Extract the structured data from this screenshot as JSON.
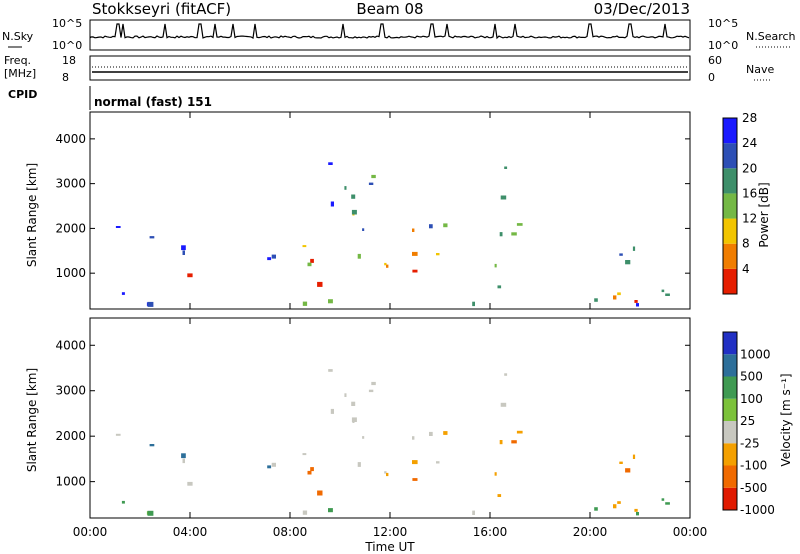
{
  "header": {
    "station": "Stokkseyri (fitACF)",
    "beam": "Beam 08",
    "date": "03/Dec/2013"
  },
  "top_panels": {
    "nsky_label": "N.Sky",
    "nsky_ticks": [
      "10^5",
      "10^0"
    ],
    "nsearch_label": "N.Search",
    "nsearch_ticks": [
      "10^5",
      "10^0"
    ],
    "freq_label": "Freq.",
    "freq_unit": "[MHz]",
    "freq_ticks": [
      "18",
      "8"
    ],
    "nave_label": "Nave",
    "nave_ticks": [
      "60",
      "0"
    ],
    "cpid_label": "CPID",
    "cpid_value": "normal (fast) 151"
  },
  "chart_data": [
    {
      "type": "heatmap",
      "name": "power",
      "ylabel": "Slant Range [km]",
      "yticks": [
        "1000",
        "2000",
        "3000",
        "4000"
      ],
      "ylim": [
        200,
        4600
      ],
      "xlim": [
        0,
        24
      ],
      "colorbar": {
        "label": "Power [dB]",
        "ticks": [
          "4",
          "8",
          "12",
          "16",
          "20",
          "24",
          "28"
        ],
        "colors": [
          "#1a1aff",
          "#2d4fb5",
          "#3e8f6a",
          "#74b845",
          "#f2c500",
          "#f07d00",
          "#e61e00"
        ]
      }
    },
    {
      "type": "heatmap",
      "name": "velocity",
      "ylabel": "Slant Range [km]",
      "yticks": [
        "1000",
        "2000",
        "3000",
        "4000"
      ],
      "ylim": [
        200,
        4600
      ],
      "xlim": [
        0,
        24
      ],
      "xticks": [
        "00:00",
        "04:00",
        "08:00",
        "12:00",
        "16:00",
        "20:00",
        "00:00"
      ],
      "xlabel": "Time UT",
      "colorbar": {
        "label": "Velocity [m s⁻¹]",
        "ticks": [
          "1000",
          "500",
          "100",
          "25",
          "-25",
          "-100",
          "-500",
          "-1000"
        ],
        "colors": [
          "#2130c4",
          "#2d6f9a",
          "#3f9a52",
          "#7cc23a",
          "#c8c8c0",
          "#f4a000",
          "#f06a00",
          "#e01a00"
        ]
      }
    }
  ]
}
